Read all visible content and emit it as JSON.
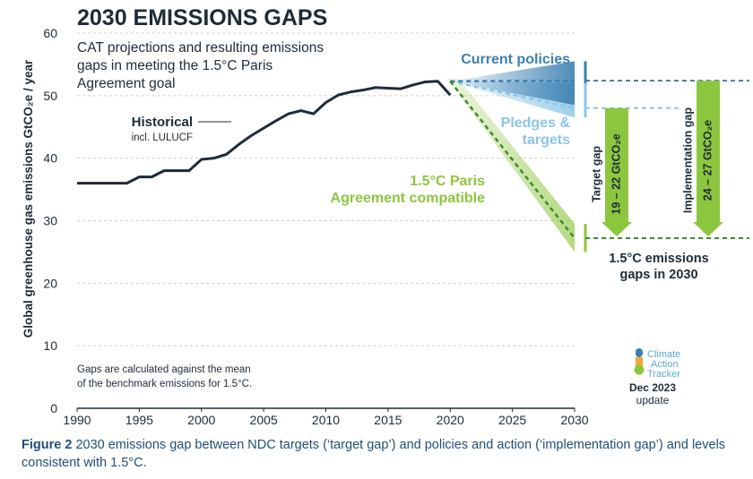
{
  "figure": {
    "number_label": "Figure 2",
    "caption": "2030 emissions gap between NDC targets (‘target gap’) and policies and action (‘implementation gap’) and levels consistent with 1.5°C."
  },
  "colors": {
    "historical": "#1e2b38",
    "current_policies": "#3b7fb1",
    "pledges": "#8cc6e6",
    "paris": "#8cc63e",
    "title": "#1e2b38",
    "grid": "#cfcfcf"
  },
  "logo": {
    "line1": "Climate",
    "line2": "Action",
    "line3": "Tracker",
    "date": "Dec 2023",
    "update": "update"
  },
  "chart_data": {
    "type": "line",
    "title": "2030 EMISSIONS GAPS",
    "subtitle_lines": [
      "CAT projections and resulting emissions",
      "gaps in meeting the 1.5°C Paris",
      "Agreement goal"
    ],
    "ylabel": "Global greenhouse gas emissions  GtCO₂e / year",
    "xlim": [
      1990,
      2030
    ],
    "ylim": [
      0,
      60
    ],
    "x_ticks": [
      1990,
      1995,
      2000,
      2005,
      2010,
      2015,
      2020,
      2025,
      2030
    ],
    "y_ticks": [
      0,
      10,
      20,
      30,
      40,
      50,
      60
    ],
    "grid": true,
    "note_lines": [
      "Gaps are calculated against the mean",
      "of the benchmark emissions for 1.5°C."
    ],
    "series": [
      {
        "key": "historical",
        "name": "Historical",
        "sublabel": "incl. LULUCF",
        "x": [
          1990,
          1991,
          1992,
          1993,
          1994,
          1995,
          1996,
          1997,
          1998,
          1999,
          2000,
          2001,
          2002,
          2003,
          2004,
          2005,
          2006,
          2007,
          2008,
          2009,
          2010,
          2011,
          2012,
          2013,
          2014,
          2015,
          2016,
          2017,
          2018,
          2019,
          2020
        ],
        "y": [
          36,
          36,
          36,
          36,
          36,
          37,
          37,
          38,
          38,
          38,
          39.8,
          40,
          40.6,
          42.2,
          43.6,
          44.8,
          46,
          47.1,
          47.6,
          47.1,
          48.9,
          50.1,
          50.6,
          50.9,
          51.3,
          51.2,
          51.1,
          51.7,
          52.2,
          52.3,
          50.1
        ]
      },
      {
        "key": "current_policies",
        "name": "Current policies",
        "x": [
          2020,
          2030
        ],
        "y": [
          52.3,
          52.4
        ],
        "range_2030": [
          48.5,
          55.5
        ]
      },
      {
        "key": "pledges",
        "name": "Pledges & targets",
        "x": [
          2020,
          2030
        ],
        "y": [
          52.3,
          48
        ],
        "range_2030": [
          46.5,
          52
        ]
      },
      {
        "key": "paris",
        "name": "1.5°C Paris Agreement compatible",
        "x": [
          2020,
          2030
        ],
        "y": [
          52.3,
          27.2
        ],
        "range_2030": [
          25,
          29.5
        ]
      }
    ],
    "gaps": [
      {
        "name": "Target gap",
        "value": "19 – 22 GtCO₂e",
        "from": 48,
        "to": 27.2
      },
      {
        "name": "Implementation gap",
        "value": "24 – 27 GtCO₂e",
        "from": 52.4,
        "to": 27.2
      }
    ],
    "gap_summary_lines": [
      "1.5°C emissions",
      "gaps in 2030"
    ]
  }
}
